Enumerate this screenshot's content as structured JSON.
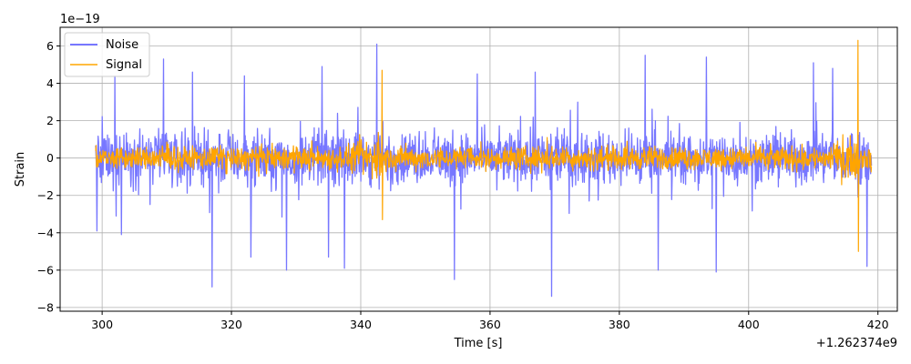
{
  "chart_data": {
    "type": "line",
    "title": "",
    "xlabel": "Time [s]",
    "ylabel": "Strain",
    "x_offset_label": "+1.262374e9",
    "y_scale_label": "1e−19",
    "xlim": [
      293.5,
      423
    ],
    "ylim": [
      -8.2,
      7.0
    ],
    "x_ticks": [
      300,
      320,
      340,
      360,
      380,
      400,
      420
    ],
    "y_ticks": [
      -8,
      -6,
      -4,
      -2,
      0,
      2,
      4,
      6
    ],
    "grid": true,
    "legend_position": "top-left",
    "series": [
      {
        "name": "Noise",
        "color": "#7777ff",
        "t_start": 299,
        "t_end": 419,
        "typical_amplitude": 2.0,
        "peaks": [
          {
            "t": 299.2,
            "value": -3.9
          },
          {
            "t": 302,
            "value": 4.4
          },
          {
            "t": 303,
            "value": -4.1
          },
          {
            "t": 309.5,
            "value": 5.3
          },
          {
            "t": 314,
            "value": 4.6
          },
          {
            "t": 317,
            "value": -6.9
          },
          {
            "t": 322,
            "value": 4.4
          },
          {
            "t": 323,
            "value": -5.3
          },
          {
            "t": 328.5,
            "value": -6.0
          },
          {
            "t": 334,
            "value": 4.9
          },
          {
            "t": 335,
            "value": -5.3
          },
          {
            "t": 337.5,
            "value": -5.9
          },
          {
            "t": 342.5,
            "value": 6.1
          },
          {
            "t": 354.5,
            "value": -6.5
          },
          {
            "t": 358,
            "value": 4.5
          },
          {
            "t": 367,
            "value": 4.6
          },
          {
            "t": 369.5,
            "value": -7.4
          },
          {
            "t": 384,
            "value": 5.5
          },
          {
            "t": 386,
            "value": -6.0
          },
          {
            "t": 393.5,
            "value": 5.4
          },
          {
            "t": 395,
            "value": -6.1
          },
          {
            "t": 410,
            "value": 5.1
          },
          {
            "t": 413,
            "value": 4.8
          },
          {
            "t": 418.3,
            "value": -5.8
          }
        ]
      },
      {
        "name": "Signal",
        "color": "#ffa500",
        "t_start": 299,
        "t_end": 419,
        "typical_amplitude": 0.9,
        "events": [
          {
            "t": 343.3,
            "max": 4.7,
            "min": -3.3
          },
          {
            "t": 416.9,
            "max": 6.3,
            "min": -5.0
          }
        ]
      }
    ]
  }
}
